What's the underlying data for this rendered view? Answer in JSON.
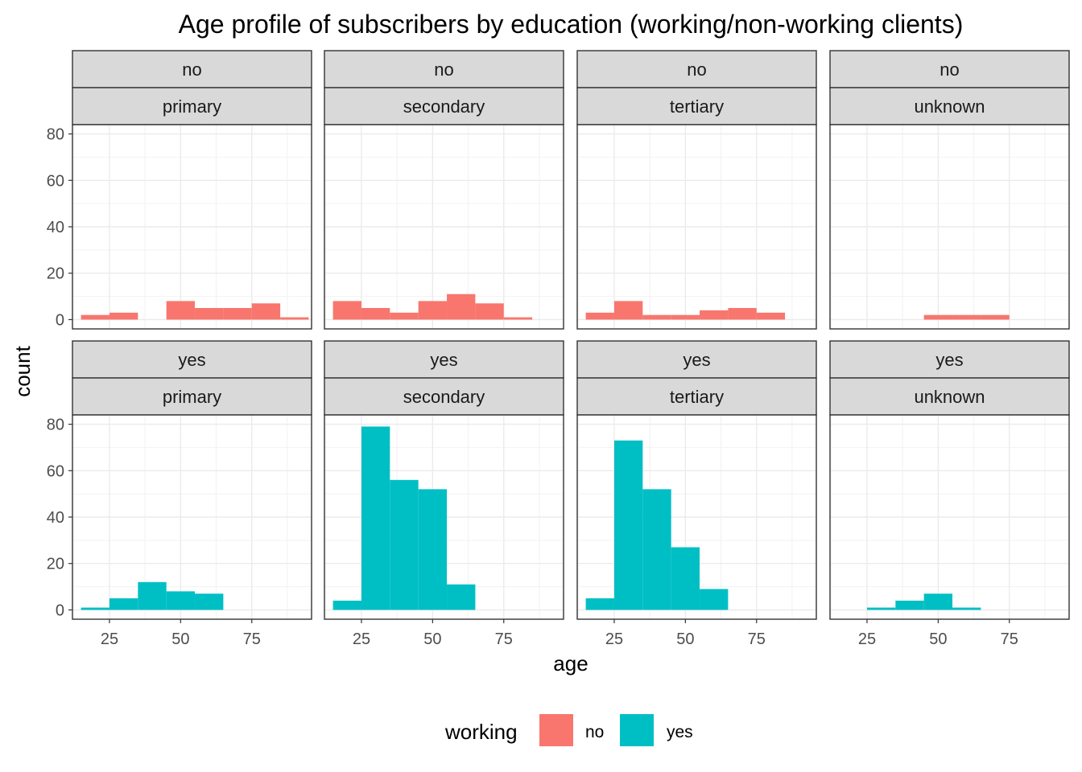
{
  "chart_data": {
    "type": "bar",
    "title": "Age profile of subscribers by education (working/non-working clients)",
    "xlabel": "age",
    "ylabel": "count",
    "xlim": [
      12,
      96
    ],
    "ylim": [
      -4,
      84
    ],
    "x_ticks": [
      25,
      50,
      75
    ],
    "y_ticks": [
      0,
      20,
      40,
      60,
      80
    ],
    "grid": true,
    "bin_width": 10,
    "facet_rows": [
      "no",
      "yes"
    ],
    "facet_cols": [
      "primary",
      "secondary",
      "tertiary",
      "unknown"
    ],
    "legend": {
      "title": "working",
      "position": "bottom",
      "items": [
        {
          "label": "no",
          "color": "#F8766D"
        },
        {
          "label": "yes",
          "color": "#00BFC4"
        }
      ]
    },
    "panels": [
      {
        "working": "no",
        "education": "primary",
        "bins": [
          [
            15,
            25,
            2
          ],
          [
            25,
            35,
            3
          ],
          [
            45,
            55,
            8
          ],
          [
            55,
            65,
            5
          ],
          [
            65,
            75,
            5
          ],
          [
            75,
            85,
            7
          ],
          [
            85,
            95,
            1
          ]
        ]
      },
      {
        "working": "no",
        "education": "secondary",
        "bins": [
          [
            15,
            25,
            8
          ],
          [
            25,
            35,
            5
          ],
          [
            35,
            45,
            3
          ],
          [
            45,
            55,
            8
          ],
          [
            55,
            65,
            11
          ],
          [
            65,
            75,
            7
          ],
          [
            75,
            85,
            1
          ]
        ]
      },
      {
        "working": "no",
        "education": "tertiary",
        "bins": [
          [
            15,
            25,
            3
          ],
          [
            25,
            35,
            8
          ],
          [
            35,
            45,
            2
          ],
          [
            45,
            55,
            2
          ],
          [
            55,
            65,
            4
          ],
          [
            65,
            75,
            5
          ],
          [
            75,
            85,
            3
          ]
        ]
      },
      {
        "working": "no",
        "education": "unknown",
        "bins": [
          [
            45,
            55,
            2
          ],
          [
            55,
            65,
            2
          ],
          [
            65,
            75,
            2
          ]
        ]
      },
      {
        "working": "yes",
        "education": "primary",
        "bins": [
          [
            15,
            25,
            1
          ],
          [
            25,
            35,
            5
          ],
          [
            35,
            45,
            12
          ],
          [
            45,
            55,
            8
          ],
          [
            55,
            65,
            7
          ]
        ]
      },
      {
        "working": "yes",
        "education": "secondary",
        "bins": [
          [
            15,
            25,
            4
          ],
          [
            25,
            35,
            79
          ],
          [
            35,
            45,
            56
          ],
          [
            45,
            55,
            52
          ],
          [
            55,
            65,
            11
          ]
        ]
      },
      {
        "working": "yes",
        "education": "tertiary",
        "bins": [
          [
            15,
            25,
            5
          ],
          [
            25,
            35,
            73
          ],
          [
            35,
            45,
            52
          ],
          [
            45,
            55,
            27
          ],
          [
            55,
            65,
            9
          ]
        ]
      },
      {
        "working": "yes",
        "education": "unknown",
        "bins": [
          [
            25,
            35,
            1
          ],
          [
            35,
            45,
            4
          ],
          [
            45,
            55,
            7
          ],
          [
            55,
            65,
            1
          ]
        ]
      }
    ]
  }
}
